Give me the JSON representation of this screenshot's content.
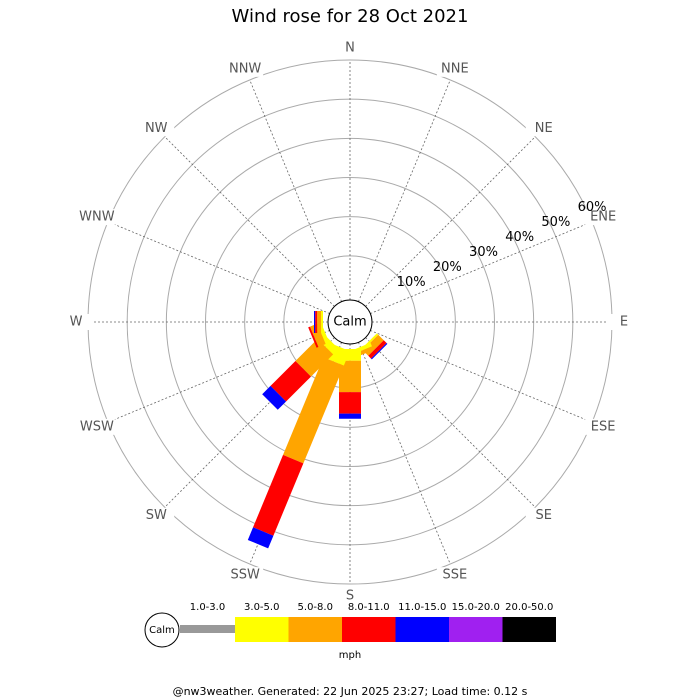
{
  "chart_data": {
    "type": "windrose",
    "title": "Wind rose for 28 Oct 2021",
    "calm_label": "Calm",
    "directions": [
      "N",
      "NNE",
      "NE",
      "ENE",
      "E",
      "ESE",
      "SE",
      "SSE",
      "S",
      "SSW",
      "SW",
      "WSW",
      "W",
      "WNW",
      "NW",
      "NNW"
    ],
    "rlim": [
      0,
      60
    ],
    "rticks": [
      {
        "value": 10,
        "label": "10%"
      },
      {
        "value": 20,
        "label": "20%"
      },
      {
        "value": 30,
        "label": "30%"
      },
      {
        "value": 40,
        "label": "40%"
      },
      {
        "value": 50,
        "label": "50%"
      },
      {
        "value": 60,
        "label": "60%"
      }
    ],
    "series": [
      {
        "name": "1.0-3.0",
        "color": "#999999",
        "values": [
          0,
          0,
          0,
          0,
          0,
          0,
          0,
          0,
          0,
          0,
          0,
          0,
          0,
          0,
          0,
          0
        ]
      },
      {
        "name": "3.0-5.0",
        "color": "#ffff00",
        "values": [
          0,
          0,
          0,
          0,
          0,
          0,
          0.5,
          1,
          3,
          4,
          2,
          1,
          0.5,
          0,
          0,
          0
        ]
      },
      {
        "name": "5.0-8.0",
        "color": "#ffa500",
        "values": [
          0,
          0,
          0,
          0,
          0,
          0,
          2,
          1,
          8,
          27,
          8,
          2,
          1,
          0,
          0,
          0
        ]
      },
      {
        "name": "8.0-11.0",
        "color": "#ff0000",
        "values": [
          0,
          0,
          0,
          0,
          0,
          0,
          1,
          0,
          5.5,
          20,
          9,
          0.5,
          0.5,
          0,
          0,
          0
        ]
      },
      {
        "name": "11.0-15.0",
        "color": "#0000ff",
        "values": [
          0,
          0,
          0,
          0,
          0,
          0,
          0.3,
          0,
          1.3,
          3.5,
          3,
          0,
          0.3,
          0,
          0,
          0
        ]
      },
      {
        "name": "15.0-20.0",
        "color": "#a020f0",
        "values": [
          0,
          0,
          0,
          0,
          0,
          0,
          0,
          0,
          0,
          0,
          0,
          0,
          0,
          0,
          0,
          0
        ]
      },
      {
        "name": "20.0-50.0",
        "color": "#000000",
        "values": [
          0,
          0,
          0,
          0,
          0,
          0,
          0,
          0,
          0,
          0,
          0,
          0,
          0,
          0,
          0,
          0
        ]
      }
    ],
    "unit": "mph",
    "footer": "@nw3weather. Generated: 22 Jun 2025 23:27; Load time: 0.12 s"
  }
}
